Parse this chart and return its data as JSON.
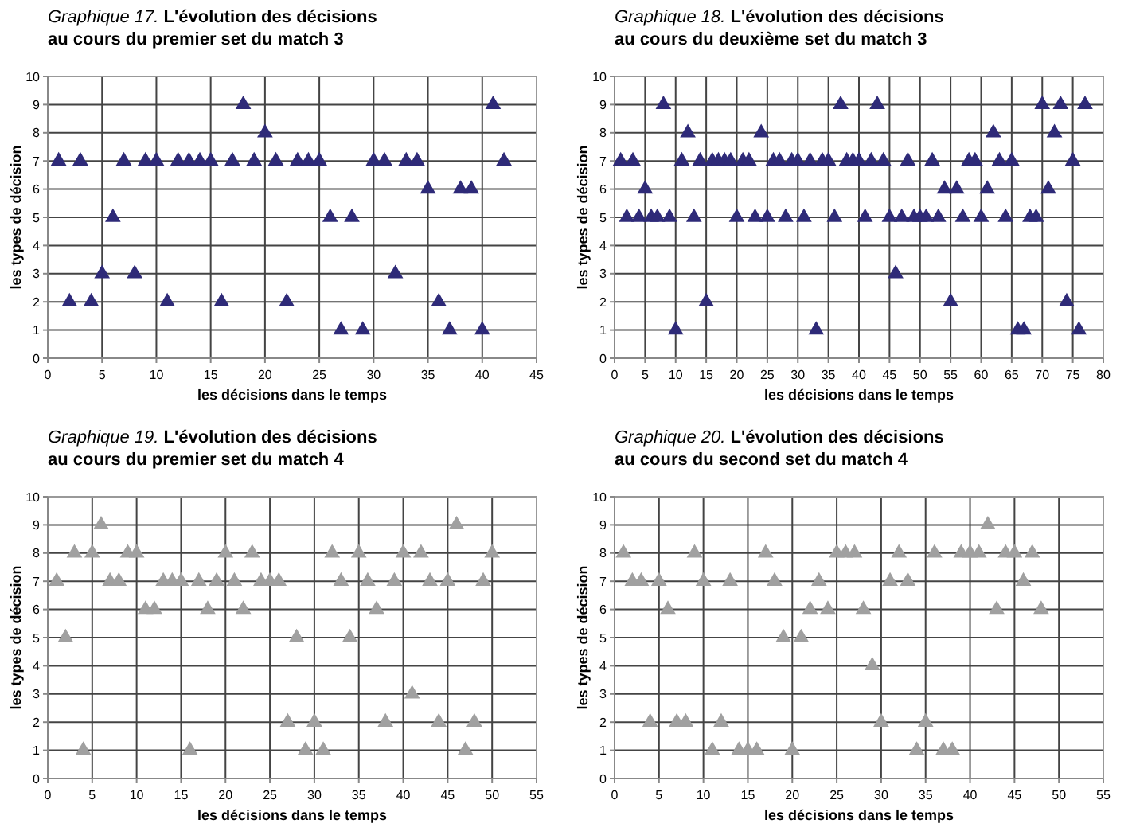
{
  "chart_data": [
    {
      "type": "scatter",
      "title": "Graphique 17.",
      "subtitle": "L'évolution des décisions au cours du premier set du match 3",
      "xlabel": "les décisions dans le temps",
      "ylabel": "les types de décision",
      "marker": "triangle",
      "grid": true,
      "xlim": [
        0,
        45
      ],
      "xticks": [
        0,
        5,
        10,
        15,
        20,
        25,
        30,
        35,
        40,
        45
      ],
      "ylim": [
        0,
        10
      ],
      "yticks": [
        0,
        1,
        2,
        3,
        4,
        5,
        6,
        7,
        8,
        9,
        10
      ],
      "series": [
        {
          "color": "#2e2a78",
          "x": [
            1,
            2,
            3,
            4,
            5,
            6,
            7,
            8,
            9,
            10,
            11,
            12,
            13,
            14,
            15,
            16,
            17,
            18,
            19,
            20,
            21,
            22,
            23,
            24,
            25,
            26,
            27,
            28,
            29,
            30,
            31,
            32,
            33,
            34,
            35,
            36,
            37,
            38,
            39,
            40,
            41,
            42
          ],
          "values": [
            7,
            2,
            7,
            2,
            3,
            5,
            7,
            3,
            7,
            7,
            2,
            7,
            7,
            7,
            7,
            2,
            7,
            9,
            7,
            8,
            7,
            2,
            7,
            7,
            7,
            5,
            1,
            5,
            1,
            7,
            7,
            3,
            7,
            7,
            6,
            2,
            1,
            6,
            6,
            1,
            9,
            7
          ]
        }
      ]
    },
    {
      "type": "scatter",
      "title": "Graphique 18.",
      "subtitle": "L'évolution des décisions au cours du deuxième set du match 3",
      "xlabel": "les décisions dans le temps",
      "ylabel": "les types de décision",
      "marker": "triangle",
      "grid": true,
      "xlim": [
        0,
        80
      ],
      "xticks": [
        0,
        5,
        10,
        15,
        20,
        25,
        30,
        35,
        40,
        45,
        50,
        55,
        60,
        65,
        70,
        75,
        80
      ],
      "ylim": [
        0,
        10
      ],
      "yticks": [
        0,
        1,
        2,
        3,
        4,
        5,
        6,
        7,
        8,
        9,
        10
      ],
      "series": [
        {
          "color": "#2e2a78",
          "x": [
            1,
            2,
            3,
            4,
            5,
            6,
            7,
            8,
            9,
            10,
            11,
            12,
            13,
            14,
            15,
            16,
            17,
            18,
            19,
            20,
            21,
            22,
            23,
            24,
            25,
            26,
            27,
            28,
            29,
            30,
            31,
            32,
            33,
            34,
            35,
            36,
            37,
            38,
            39,
            40,
            41,
            42,
            43,
            44,
            45,
            46,
            47,
            48,
            49,
            50,
            51,
            52,
            53,
            54,
            55,
            56,
            57,
            58,
            59,
            60,
            61,
            62,
            63,
            64,
            65,
            66,
            67,
            68,
            69,
            70,
            71,
            72,
            73,
            74,
            75,
            76,
            77
          ],
          "values": [
            7,
            5,
            7,
            5,
            6,
            5,
            5,
            9,
            5,
            1,
            7,
            8,
            5,
            7,
            2,
            7,
            7,
            7,
            7,
            5,
            7,
            7,
            5,
            8,
            5,
            7,
            7,
            5,
            7,
            7,
            5,
            7,
            1,
            7,
            7,
            5,
            9,
            7,
            7,
            7,
            5,
            7,
            9,
            7,
            5,
            3,
            5,
            7,
            5,
            5,
            5,
            7,
            5,
            6,
            2,
            6,
            5,
            7,
            7,
            5,
            6,
            8,
            7,
            5,
            7,
            1,
            1,
            5,
            5,
            9,
            6,
            8,
            9,
            2,
            7,
            1,
            9
          ]
        }
      ]
    },
    {
      "type": "scatter",
      "title": "Graphique 19.",
      "subtitle": "L'évolution des décisions au cours du premier set du match 4",
      "xlabel": "les décisions dans le temps",
      "ylabel": "les types de décision",
      "marker": "triangle",
      "grid": true,
      "xlim": [
        0,
        55
      ],
      "xticks": [
        0,
        5,
        10,
        15,
        20,
        25,
        30,
        35,
        40,
        45,
        50,
        55
      ],
      "ylim": [
        0,
        10
      ],
      "yticks": [
        0,
        1,
        2,
        3,
        4,
        5,
        6,
        7,
        8,
        9,
        10
      ],
      "series": [
        {
          "color": "#a0a0a0",
          "x": [
            1,
            2,
            3,
            4,
            5,
            6,
            7,
            8,
            9,
            10,
            11,
            12,
            13,
            14,
            15,
            16,
            17,
            18,
            19,
            20,
            21,
            22,
            23,
            24,
            25,
            26,
            27,
            28,
            29,
            30,
            31,
            32,
            33,
            34,
            35,
            36,
            37,
            38,
            39,
            40,
            41,
            42,
            43,
            44,
            45,
            46,
            47,
            48,
            49,
            50
          ],
          "values": [
            7,
            5,
            8,
            1,
            8,
            9,
            7,
            7,
            8,
            8,
            6,
            6,
            7,
            7,
            7,
            1,
            7,
            6,
            7,
            8,
            7,
            6,
            8,
            7,
            7,
            7,
            2,
            5,
            1,
            2,
            1,
            8,
            7,
            5,
            8,
            7,
            6,
            2,
            7,
            8,
            3,
            8,
            7,
            2,
            7,
            9,
            1,
            2,
            7,
            8
          ]
        }
      ]
    },
    {
      "type": "scatter",
      "title": "Graphique 20.",
      "subtitle": "L'évolution des décisions au cours du second set du match 4",
      "xlabel": "les décisions dans le temps",
      "ylabel": "les types de décision",
      "marker": "triangle",
      "grid": true,
      "xlim": [
        0,
        55
      ],
      "xticks": [
        0,
        5,
        10,
        15,
        20,
        25,
        30,
        35,
        40,
        45,
        50,
        55
      ],
      "ylim": [
        0,
        10
      ],
      "yticks": [
        0,
        1,
        2,
        3,
        4,
        5,
        6,
        7,
        8,
        9,
        10
      ],
      "series": [
        {
          "color": "#a0a0a0",
          "x": [
            1,
            2,
            3,
            4,
            5,
            6,
            7,
            8,
            9,
            10,
            11,
            12,
            13,
            14,
            15,
            16,
            17,
            18,
            19,
            20,
            21,
            22,
            23,
            24,
            25,
            26,
            27,
            28,
            29,
            30,
            31,
            32,
            33,
            34,
            35,
            36,
            37,
            38,
            39,
            40,
            41,
            42,
            43,
            44,
            45,
            46,
            47,
            48
          ],
          "values": [
            8,
            7,
            7,
            2,
            7,
            6,
            2,
            2,
            8,
            7,
            1,
            2,
            7,
            1,
            1,
            1,
            8,
            7,
            5,
            1,
            5,
            6,
            7,
            6,
            8,
            8,
            8,
            6,
            4,
            2,
            7,
            8,
            7,
            1,
            2,
            8,
            1,
            1,
            8,
            8,
            8,
            9,
            6,
            8,
            8,
            7,
            8,
            6
          ]
        }
      ]
    }
  ]
}
